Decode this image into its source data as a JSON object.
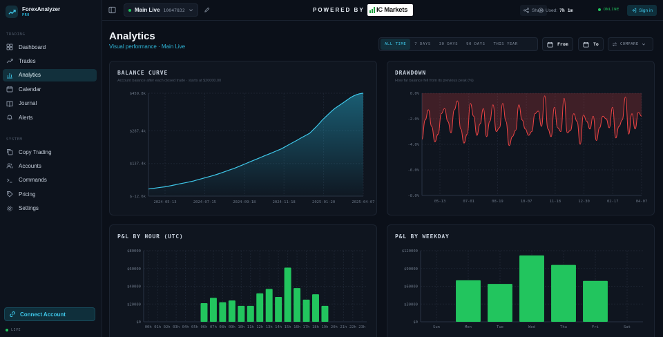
{
  "brand": {
    "name": "ForexAnalyzer",
    "badge": "PRO"
  },
  "sidebar": {
    "trading_label": "TRADING",
    "trading_items": [
      {
        "label": "Dashboard",
        "icon": "dashboard-icon"
      },
      {
        "label": "Trades",
        "icon": "trend-icon"
      },
      {
        "label": "Analytics",
        "icon": "bar-chart-icon",
        "active": true
      },
      {
        "label": "Calendar",
        "icon": "calendar-icon"
      },
      {
        "label": "Journal",
        "icon": "book-icon"
      },
      {
        "label": "Alerts",
        "icon": "bell-icon"
      }
    ],
    "system_label": "SYSTEM",
    "system_items": [
      {
        "label": "Copy Trading",
        "icon": "copy-icon"
      },
      {
        "label": "Accounts",
        "icon": "users-icon"
      },
      {
        "label": "Commands",
        "icon": "terminal-icon"
      },
      {
        "label": "Pricing",
        "icon": "tag-icon"
      },
      {
        "label": "Settings",
        "icon": "gear-icon"
      }
    ],
    "connect_label": "Connect Account",
    "live_label": "LIVE"
  },
  "topbar": {
    "account_name": "Main Live",
    "account_number": "10047832",
    "powered_by": "POWERED BY",
    "broker_name": "IC Markets",
    "share_label": "Share",
    "used_label": "Used:",
    "used_value": "7h 1m",
    "online_label": "ONLINE",
    "signin_label": "Sign in"
  },
  "header": {
    "title": "Analytics",
    "subtitle": "Visual performance · Main Live",
    "ranges": [
      "ALL TIME",
      "7 DAYS",
      "30 DAYS",
      "90 DAYS",
      "THIS YEAR"
    ],
    "active_range": 0,
    "from_label": "From",
    "to_label": "To",
    "compare_label": "COMPARE"
  },
  "colors": {
    "accent": "#27b4d8",
    "positive": "#22c55e",
    "negative": "#ef4444",
    "background": "#0b1019"
  },
  "chart_data": [
    {
      "id": "balance",
      "type": "area",
      "title": "BALANCE CURVE",
      "subtitle": "Account balance after each closed trade · starts at $20000.00",
      "x_ticks": [
        "2024-05-13",
        "2024-07-15",
        "2024-09-18",
        "2024-11-18",
        "2025-01-20",
        "2025-04-07"
      ],
      "y_ticks": [
        "$459.8k",
        "$287.4k",
        "$137.4k",
        "$-12.6k"
      ],
      "ylim": [
        -12.6,
        459.8
      ],
      "values": [
        20,
        22,
        24,
        26,
        28,
        30,
        32,
        35,
        38,
        41,
        44,
        47,
        50,
        53,
        56,
        60,
        64,
        68,
        72,
        76,
        80,
        84,
        89,
        94,
        99,
        104,
        109,
        114,
        120,
        126,
        132,
        138,
        144,
        150,
        156,
        162,
        168,
        174,
        180,
        186,
        192,
        198,
        204,
        212,
        220,
        228,
        236,
        244,
        252,
        260,
        268,
        276,
        290,
        304,
        320,
        336,
        350,
        364,
        378,
        390,
        400,
        410,
        420,
        430,
        440,
        448,
        454,
        458,
        460
      ]
    },
    {
      "id": "drawdown",
      "type": "line",
      "title": "DRAWDOWN",
      "subtitle": "How far balance fell from its previous peak (%)",
      "x_ticks": [
        "05-13",
        "07-01",
        "08-19",
        "10-07",
        "11-18",
        "12-30",
        "02-17",
        "04-07"
      ],
      "y_ticks": [
        "0.0%",
        "-2.0%",
        "-4.0%",
        "-6.0%",
        "-8.0%"
      ],
      "ylim": [
        -8,
        0
      ],
      "values": [
        -3.6,
        -2.1,
        -1.3,
        -2.6,
        -3.8,
        -3.2,
        -1.6,
        -1.2,
        -2.2,
        -3.1,
        -1.3,
        -0.6,
        -2.8,
        -3.9,
        -3.2,
        -0.8,
        -1.8,
        -3.3,
        -2.4,
        -1.2,
        -3.4,
        -2.2,
        -0.9,
        -3.0,
        -2.7,
        -0.8,
        -2.2,
        -4.1,
        -3.4,
        -2.9,
        -0.9,
        -2.1,
        -2.8,
        -3.3,
        -3.0,
        -1.6,
        -1.4,
        -2.6,
        -0.2,
        -2.8,
        -3.4,
        -1.1,
        -2.7,
        -3.0,
        -0.4,
        -3.1,
        -2.9,
        -1.6,
        -2.2,
        -4.0,
        -1.7,
        -2.2,
        -2.8,
        -1.8,
        -3.7,
        -2.7,
        -1.8,
        -2.0,
        -2.7,
        -1.1,
        -3.5,
        -2.6,
        -2.1,
        -0.3,
        -3.2,
        -1.6,
        -2.8,
        -1.5,
        -1.8
      ]
    },
    {
      "id": "pnl_hour",
      "type": "bar",
      "title": "P&L BY HOUR (UTC)",
      "categories": [
        "00h",
        "01h",
        "02h",
        "03h",
        "04h",
        "05h",
        "06h",
        "07h",
        "08h",
        "09h",
        "10h",
        "11h",
        "12h",
        "13h",
        "14h",
        "15h",
        "16h",
        "17h",
        "18h",
        "19h",
        "20h",
        "21h",
        "22h",
        "23h"
      ],
      "y_ticks": [
        "$80000",
        "$60000",
        "$40000",
        "$20000",
        "$0"
      ],
      "ylim": [
        0,
        80000
      ],
      "values": [
        0,
        0,
        0,
        0,
        0,
        0,
        21000,
        27000,
        22000,
        24000,
        18000,
        18000,
        32000,
        37000,
        28000,
        61000,
        38000,
        25000,
        31000,
        18000,
        0,
        0,
        0,
        0
      ]
    },
    {
      "id": "pnl_weekday",
      "type": "bar",
      "title": "P&L BY WEEKDAY",
      "categories": [
        "Sun",
        "Mon",
        "Tue",
        "Wed",
        "Thu",
        "Fri",
        "Sat"
      ],
      "y_ticks": [
        "$120000",
        "$90000",
        "$60000",
        "$30000",
        "$0"
      ],
      "ylim": [
        0,
        120000
      ],
      "values": [
        0,
        70000,
        64000,
        112000,
        96000,
        69000,
        0
      ]
    }
  ]
}
